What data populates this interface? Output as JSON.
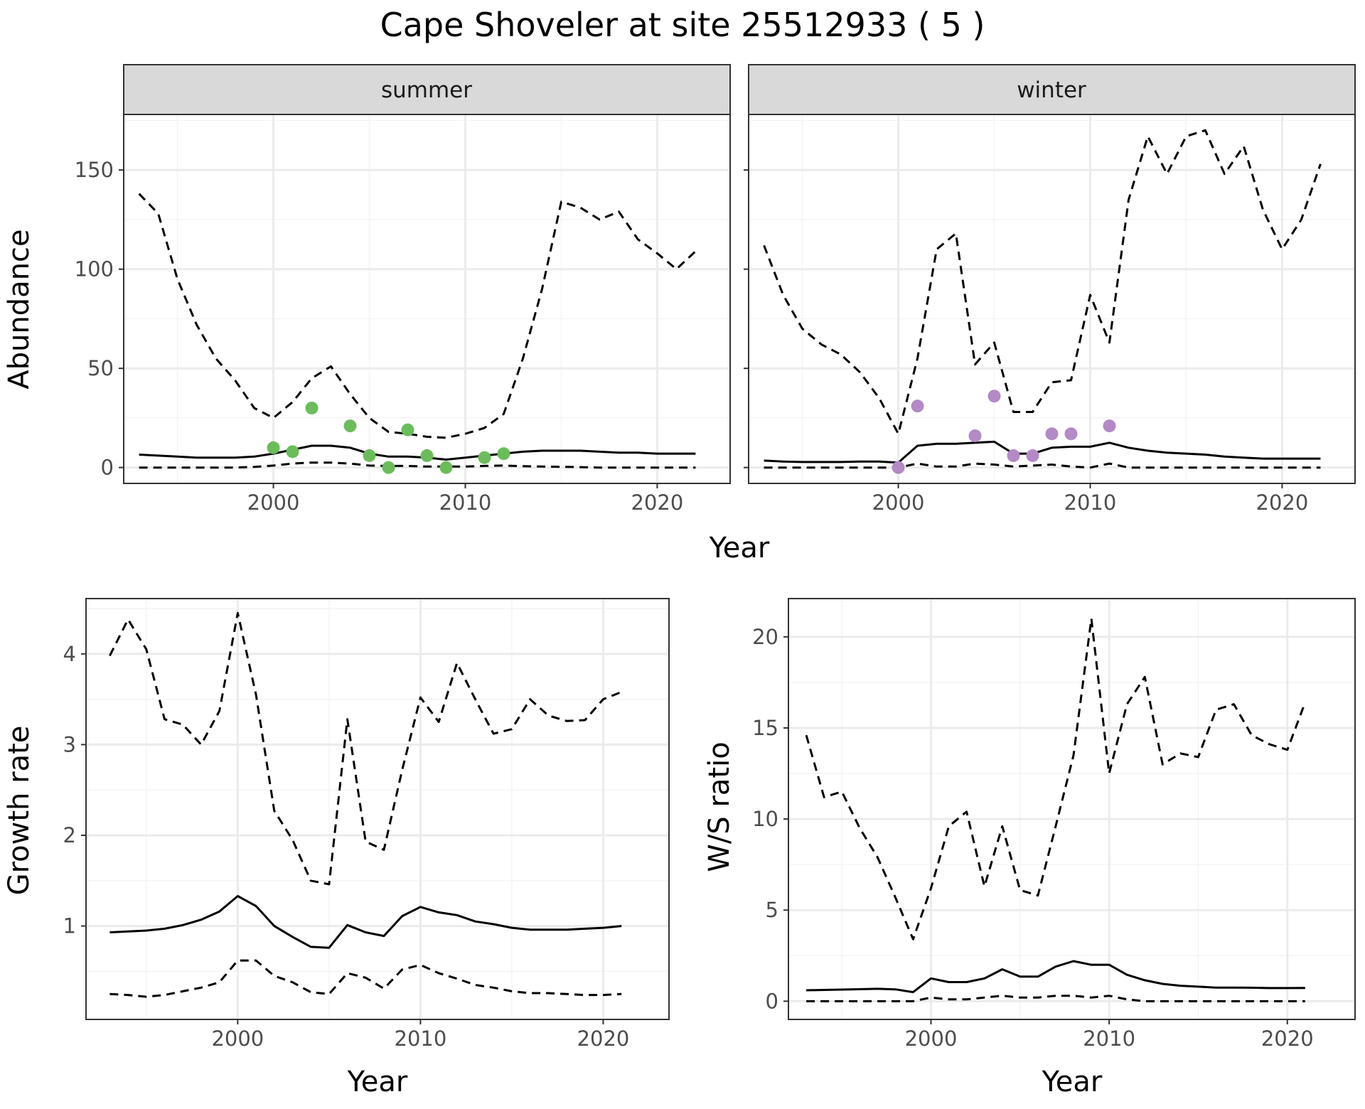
{
  "title": "Cape Shoveler at site 25512933 ( 5 )",
  "colors": {
    "summer_points": "#6abd5a",
    "winter_points": "#b389c6",
    "line": "#000000",
    "grid_major": "#ebebeb",
    "grid_minor": "#f4f4f4",
    "strip": "#d9d9d9",
    "panel_border": "#333333"
  },
  "chart_data": [
    {
      "type": "line",
      "facet": "summer",
      "xlabel": "Year",
      "ylabel": "Abundance",
      "xlim": [
        1992.2,
        2023.8
      ],
      "ylim": [
        -8,
        178
      ],
      "xticks": [
        2000,
        2010,
        2020
      ],
      "xtick_labels": [
        "2000",
        "2010",
        "2020"
      ],
      "yticks": [
        0,
        50,
        100,
        150
      ],
      "ytick_labels": [
        "0",
        "50",
        "100",
        "150"
      ],
      "grid": true,
      "x": [
        1993,
        1994,
        1995,
        1996,
        1997,
        1998,
        1999,
        2000,
        2001,
        2002,
        2003,
        2004,
        2005,
        2006,
        2007,
        2008,
        2009,
        2010,
        2011,
        2012,
        2013,
        2014,
        2015,
        2016,
        2017,
        2018,
        2019,
        2020,
        2021,
        2022
      ],
      "series": [
        {
          "style": "solid",
          "values": [
            6.5,
            6,
            5.5,
            5,
            5,
            5,
            5.5,
            7,
            9,
            11,
            11,
            10,
            7,
            5.5,
            5.5,
            5,
            4,
            5,
            6,
            7,
            8,
            8.5,
            8.5,
            8.5,
            8,
            7.5,
            7.5,
            7,
            7,
            7
          ]
        },
        {
          "style": "dashed",
          "values": [
            138,
            128,
            95,
            72,
            55,
            44,
            30,
            25,
            33,
            45,
            51,
            37,
            25,
            18,
            17,
            15.5,
            15,
            17,
            20,
            27,
            55,
            90,
            134,
            131,
            125,
            129,
            115,
            108,
            100,
            109
          ]
        },
        {
          "style": "dashed",
          "values": [
            0,
            0,
            0,
            0,
            0,
            0,
            0.3,
            1,
            2,
            2.5,
            2.5,
            2,
            1,
            0.8,
            0.8,
            0.5,
            0.5,
            0.5,
            0.8,
            1,
            0.7,
            0.5,
            0.4,
            0.2,
            0,
            0,
            0,
            0,
            0,
            0
          ]
        }
      ],
      "points": [
        {
          "x": 2000,
          "y": 10
        },
        {
          "x": 2001,
          "y": 8
        },
        {
          "x": 2002,
          "y": 30
        },
        {
          "x": 2004,
          "y": 21
        },
        {
          "x": 2005,
          "y": 6
        },
        {
          "x": 2006,
          "y": 0
        },
        {
          "x": 2007,
          "y": 19
        },
        {
          "x": 2008,
          "y": 6
        },
        {
          "x": 2009,
          "y": 0
        },
        {
          "x": 2011,
          "y": 5
        },
        {
          "x": 2012,
          "y": 7
        }
      ]
    },
    {
      "type": "line",
      "facet": "winter",
      "xlabel": "Year",
      "ylabel": "Abundance",
      "xlim": [
        1992.2,
        2023.8
      ],
      "ylim": [
        -8,
        178
      ],
      "xticks": [
        2000,
        2010,
        2020
      ],
      "xtick_labels": [
        "2000",
        "2010",
        "2020"
      ],
      "yticks": [
        0,
        50,
        100,
        150
      ],
      "ytick_labels": [
        "0",
        "50",
        "100",
        "150"
      ],
      "grid": true,
      "x": [
        1993,
        1994,
        1995,
        1996,
        1997,
        1998,
        1999,
        2000,
        2001,
        2002,
        2003,
        2004,
        2005,
        2006,
        2007,
        2008,
        2009,
        2010,
        2011,
        2012,
        2013,
        2014,
        2015,
        2016,
        2017,
        2018,
        2019,
        2020,
        2021,
        2022
      ],
      "series": [
        {
          "style": "solid",
          "values": [
            3.5,
            3,
            2.8,
            2.8,
            2.8,
            3,
            3,
            2.5,
            11,
            12,
            12,
            12.5,
            13,
            7,
            7,
            10,
            10.5,
            10.5,
            12.5,
            10,
            8.5,
            7.5,
            7,
            6.5,
            5.5,
            5,
            4.5,
            4.5,
            4.5,
            4.5
          ]
        },
        {
          "style": "dashed",
          "values": [
            112,
            87,
            70,
            62,
            57,
            48,
            35,
            17,
            55,
            110,
            118,
            52,
            63,
            28,
            28,
            43,
            44,
            87,
            63,
            135,
            167,
            148,
            167,
            170,
            148,
            162,
            130,
            110,
            125,
            153
          ]
        },
        {
          "style": "dashed",
          "values": [
            0,
            0,
            0,
            0,
            0,
            0,
            0,
            0,
            2,
            0.5,
            0.5,
            2,
            1.5,
            0.5,
            1,
            1.5,
            0.5,
            0,
            2,
            0,
            0,
            0,
            0,
            0,
            0,
            0,
            0,
            0,
            0,
            0
          ]
        }
      ],
      "points": [
        {
          "x": 2000,
          "y": 0
        },
        {
          "x": 2001,
          "y": 31
        },
        {
          "x": 2004,
          "y": 16
        },
        {
          "x": 2005,
          "y": 36
        },
        {
          "x": 2006,
          "y": 6
        },
        {
          "x": 2007,
          "y": 6
        },
        {
          "x": 2008,
          "y": 17
        },
        {
          "x": 2009,
          "y": 17
        },
        {
          "x": 2011,
          "y": 21
        }
      ]
    },
    {
      "type": "line",
      "xlabel": "Year",
      "ylabel": "Growth rate",
      "xlim": [
        1991.7,
        2023.6
      ],
      "ylim": [
        -0.03,
        4.61
      ],
      "xticks": [
        2000,
        2010,
        2020
      ],
      "xtick_labels": [
        "2000",
        "2010",
        "2020"
      ],
      "yticks": [
        1,
        2,
        3,
        4
      ],
      "ytick_labels": [
        "1",
        "2",
        "3",
        "4"
      ],
      "grid": true,
      "x": [
        1993,
        1994,
        1995,
        1996,
        1997,
        1998,
        1999,
        2000,
        2001,
        2002,
        2003,
        2004,
        2005,
        2006,
        2007,
        2008,
        2009,
        2010,
        2011,
        2012,
        2013,
        2014,
        2015,
        2016,
        2017,
        2018,
        2019,
        2020,
        2021
      ],
      "series": [
        {
          "style": "solid",
          "values": [
            0.93,
            0.94,
            0.95,
            0.97,
            1.01,
            1.07,
            1.16,
            1.33,
            1.22,
            1.0,
            0.88,
            0.77,
            0.76,
            1.01,
            0.93,
            0.89,
            1.11,
            1.21,
            1.15,
            1.12,
            1.05,
            1.02,
            0.98,
            0.96,
            0.96,
            0.96,
            0.97,
            0.98,
            1.0
          ]
        },
        {
          "style": "dashed",
          "values": [
            3.98,
            4.38,
            4.05,
            3.28,
            3.22,
            3.0,
            3.37,
            4.45,
            3.55,
            2.27,
            1.95,
            1.5,
            1.46,
            3.28,
            1.93,
            1.84,
            2.72,
            3.52,
            3.25,
            3.9,
            3.5,
            3.12,
            3.17,
            3.5,
            3.32,
            3.26,
            3.27,
            3.5,
            3.58
          ]
        },
        {
          "style": "dashed",
          "values": [
            0.25,
            0.24,
            0.22,
            0.24,
            0.28,
            0.32,
            0.38,
            0.62,
            0.62,
            0.45,
            0.38,
            0.27,
            0.25,
            0.48,
            0.43,
            0.31,
            0.52,
            0.57,
            0.48,
            0.42,
            0.35,
            0.32,
            0.28,
            0.26,
            0.26,
            0.25,
            0.24,
            0.24,
            0.25
          ]
        }
      ]
    },
    {
      "type": "line",
      "xlabel": "Year",
      "ylabel": "W/S ratio",
      "xlim": [
        1992.0,
        2023.8
      ],
      "ylim": [
        -1.0,
        22.1
      ],
      "xticks": [
        2000,
        2010,
        2020
      ],
      "xtick_labels": [
        "2000",
        "2010",
        "2020"
      ],
      "yticks": [
        0,
        5,
        10,
        15,
        20
      ],
      "ytick_labels": [
        "0",
        "5",
        "10",
        "15",
        "20"
      ],
      "grid": true,
      "x": [
        1993,
        1994,
        1995,
        1996,
        1997,
        1998,
        1999,
        2000,
        2001,
        2002,
        2003,
        2004,
        2005,
        2006,
        2007,
        2008,
        2009,
        2010,
        2011,
        2012,
        2013,
        2014,
        2015,
        2016,
        2017,
        2018,
        2019,
        2020,
        2021
      ],
      "series": [
        {
          "style": "solid",
          "values": [
            0.6,
            0.62,
            0.64,
            0.66,
            0.68,
            0.65,
            0.5,
            1.25,
            1.05,
            1.05,
            1.25,
            1.75,
            1.35,
            1.35,
            1.9,
            2.2,
            2.0,
            2.0,
            1.45,
            1.15,
            0.95,
            0.85,
            0.8,
            0.75,
            0.75,
            0.74,
            0.72,
            0.72,
            0.73
          ]
        },
        {
          "style": "dashed",
          "values": [
            14.6,
            11.2,
            11.5,
            9.5,
            7.9,
            5.7,
            3.4,
            6.2,
            9.6,
            10.4,
            6.3,
            9.6,
            6.1,
            5.8,
            9.6,
            13.5,
            21.0,
            12.5,
            16.3,
            17.8,
            13.0,
            13.6,
            13.4,
            16.0,
            16.3,
            14.6,
            14.1,
            13.8,
            16.4
          ]
        },
        {
          "style": "dashed",
          "values": [
            0,
            0,
            0,
            0,
            0,
            0,
            0,
            0.2,
            0.1,
            0.1,
            0.2,
            0.3,
            0.2,
            0.2,
            0.3,
            0.3,
            0.2,
            0.3,
            0.1,
            0,
            0,
            0,
            0,
            0,
            0,
            0,
            0,
            0,
            0
          ]
        }
      ]
    }
  ],
  "facets": {
    "summer": "summer",
    "winter": "winter"
  },
  "shared_xlabel_top": "Year"
}
